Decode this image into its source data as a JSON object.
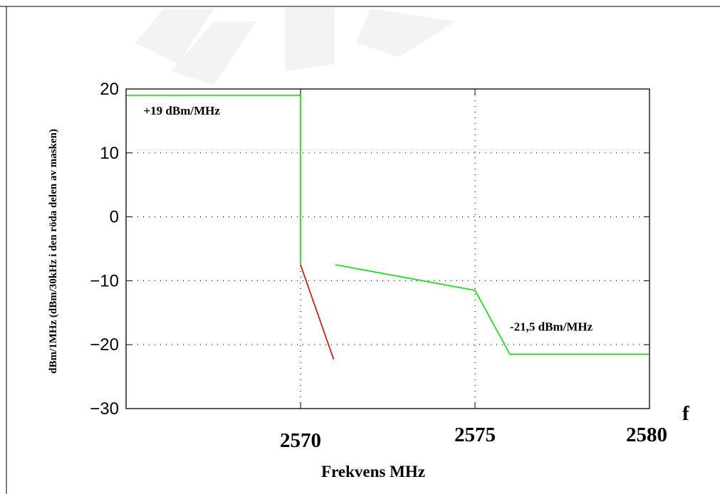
{
  "chart_data": {
    "type": "line",
    "title": "",
    "xlabel": "Frekvens MHz",
    "ylabel": "dBm/1MHz (dBm/30kHz i den röda delen av masken)",
    "xlim": [
      2565,
      2580
    ],
    "ylim": [
      -30,
      20
    ],
    "grid": true,
    "x_ticks": [
      2570,
      2575,
      2580
    ],
    "x_tick_labels": [
      "2570",
      "2575",
      "2580"
    ],
    "y_ticks": [
      20,
      10,
      0,
      -10,
      -20,
      -30
    ],
    "y_tick_labels": [
      "20",
      "10",
      "0",
      "−10",
      "−20",
      "−30"
    ],
    "x_axis_end_label": "f",
    "series": [
      {
        "color": "#00e400",
        "points": [
          [
            2565,
            19
          ],
          [
            2570,
            19
          ],
          [
            2570,
            -7.5
          ]
        ]
      },
      {
        "color": "#00e400",
        "points": [
          [
            2571,
            -7.5
          ],
          [
            2575,
            -11.5
          ],
          [
            2576,
            -21.5
          ],
          [
            2580,
            -21.5
          ]
        ]
      },
      {
        "color": "#e00000",
        "points": [
          [
            2570,
            -7.5
          ],
          [
            2570.95,
            -22.3
          ]
        ]
      }
    ],
    "annotations": [
      {
        "text": "+19 dBm/MHz",
        "x": 2565.5,
        "y": 16
      },
      {
        "text": "-21,5 dBm/MHz",
        "x": 2576,
        "y": -17.8
      }
    ]
  }
}
